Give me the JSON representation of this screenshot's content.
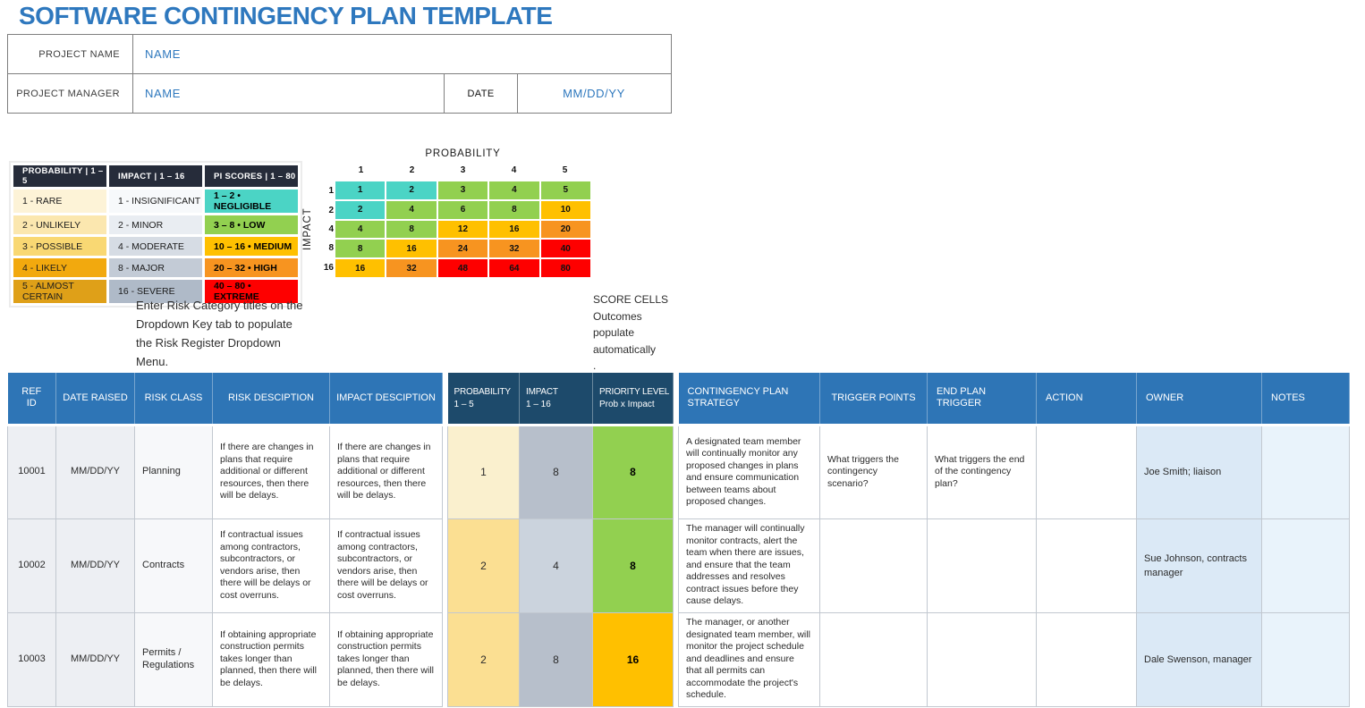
{
  "title": "SOFTWARE CONTINGENCY PLAN TEMPLATE",
  "form": {
    "project_name_label": "PROJECT NAME",
    "project_name_value": "NAME",
    "project_manager_label": "PROJECT MANAGER",
    "project_manager_value": "NAME",
    "date_label": "DATE",
    "date_value": "MM/DD/YY"
  },
  "instructions": {
    "dropdown_note": "Enter Risk Category titles on the\nDropdown Key tab to populate\nthe Risk Register Dropdown\nMenu.",
    "score_cells_note": "SCORE CELLS\nOutcomes\npopulate\nautomatically\n."
  },
  "legend": {
    "headers": [
      "PROBABILITY | 1 – 5",
      "IMPACT | 1 – 16",
      "PI SCORES | 1 – 80"
    ],
    "rows": [
      [
        {
          "label": "1 - RARE",
          "bg": "#FDF3D7"
        },
        {
          "label": "1 - INSIGNIFICANT",
          "bg": "#F7F9FB"
        },
        {
          "label": "1 – 2 • NEGLIGIBLE",
          "bg": "#4BD4C5",
          "bold": true
        }
      ],
      [
        {
          "label": "2 - UNLIKELY",
          "bg": "#FBE7AF"
        },
        {
          "label": "2 - MINOR",
          "bg": "#E9EDF2"
        },
        {
          "label": "3 – 8 • LOW",
          "bg": "#92D050",
          "bold": true
        }
      ],
      [
        {
          "label": "3 - POSSIBLE",
          "bg": "#F9D873"
        },
        {
          "label": "4 - MODERATE",
          "bg": "#D6DCE4"
        },
        {
          "label": "10 – 16 • MEDIUM",
          "bg": "#FFC000",
          "bold": true
        }
      ],
      [
        {
          "label": "4 - LIKELY",
          "bg": "#F2A90E"
        },
        {
          "label": "8 - MAJOR",
          "bg": "#C3CBD6"
        },
        {
          "label": "20 – 32 • HIGH",
          "bg": "#F79420",
          "bold": true
        }
      ],
      [
        {
          "label": "5 - ALMOST CERTAIN",
          "bg": "#DFA018"
        },
        {
          "label": "16 - SEVERE",
          "bg": "#AFBAC8"
        },
        {
          "label": "40 – 80 • EXTREME",
          "bg": "#FE0000",
          "bold": true
        }
      ]
    ]
  },
  "matrix": {
    "title": "PROBABILITY",
    "side_label": "IMPACT",
    "col_labels": [
      "1",
      "2",
      "3",
      "4",
      "5"
    ],
    "row_labels": [
      "1",
      "2",
      "4",
      "8",
      "16"
    ],
    "palette": {
      "teal": "#4BD4C5",
      "green": "#92D050",
      "gold": "#FFC000",
      "orange": "#F79420",
      "red": "#FE0000"
    },
    "cells": [
      [
        {
          "v": "1",
          "c": "teal"
        },
        {
          "v": "2",
          "c": "teal"
        },
        {
          "v": "3",
          "c": "green"
        },
        {
          "v": "4",
          "c": "green"
        },
        {
          "v": "5",
          "c": "green"
        }
      ],
      [
        {
          "v": "2",
          "c": "teal"
        },
        {
          "v": "4",
          "c": "green"
        },
        {
          "v": "6",
          "c": "green"
        },
        {
          "v": "8",
          "c": "green"
        },
        {
          "v": "10",
          "c": "gold"
        }
      ],
      [
        {
          "v": "4",
          "c": "green"
        },
        {
          "v": "8",
          "c": "green"
        },
        {
          "v": "12",
          "c": "gold"
        },
        {
          "v": "16",
          "c": "gold"
        },
        {
          "v": "20",
          "c": "orange"
        }
      ],
      [
        {
          "v": "8",
          "c": "green"
        },
        {
          "v": "16",
          "c": "gold"
        },
        {
          "v": "24",
          "c": "orange"
        },
        {
          "v": "32",
          "c": "orange"
        },
        {
          "v": "40",
          "c": "red"
        }
      ],
      [
        {
          "v": "16",
          "c": "gold"
        },
        {
          "v": "32",
          "c": "orange"
        },
        {
          "v": "48",
          "c": "red"
        },
        {
          "v": "64",
          "c": "red"
        },
        {
          "v": "80",
          "c": "red"
        }
      ]
    ]
  },
  "risk_table": {
    "columns": [
      {
        "key": "ref_id",
        "label": "REF ID",
        "theme": "light"
      },
      {
        "key": "date_raised",
        "label": "DATE RAISED",
        "theme": "light"
      },
      {
        "key": "risk_class",
        "label": "RISK CLASS",
        "theme": "light"
      },
      {
        "key": "risk_desc",
        "label": "RISK DESCIPTION",
        "theme": "light"
      },
      {
        "key": "impact_desc",
        "label": "IMPACT DESCIPTION",
        "theme": "light",
        "sep_after": true
      },
      {
        "key": "probability",
        "label": "PROBABILITY",
        "sub": "1 – 5",
        "theme": "dark"
      },
      {
        "key": "impact",
        "label": "IMPACT",
        "sub": "1 – 16",
        "theme": "dark"
      },
      {
        "key": "priority",
        "label": "PRIORITY LEVEL",
        "sub": "Prob x Impact",
        "theme": "dark",
        "sep_after": true
      },
      {
        "key": "strategy",
        "label": "CONTINGENCY PLAN STRATEGY",
        "theme": "light"
      },
      {
        "key": "trigger_points",
        "label": "TRIGGER POINTS",
        "theme": "light"
      },
      {
        "key": "end_plan_trigger",
        "label": "END PLAN TRIGGER",
        "theme": "light"
      },
      {
        "key": "action",
        "label": "ACTION",
        "theme": "light"
      },
      {
        "key": "owner",
        "label": "OWNER",
        "theme": "light"
      },
      {
        "key": "notes",
        "label": "NOTES",
        "theme": "light"
      }
    ],
    "rows": [
      {
        "ref_id": "10001",
        "date_raised": "MM/DD/YY",
        "risk_class": "Planning",
        "risk_desc": "If there are changes in  plans that require additional or different resources, then there will be delays.",
        "impact_desc": "If there are changes in  plans that require additional or different resources, then there will be delays.",
        "probability": {
          "value": "1",
          "bg": "#FAF0CE"
        },
        "impact": {
          "value": "8",
          "bg": "#B7BFCB"
        },
        "priority": {
          "value": "8",
          "bg": "#92D050"
        },
        "strategy": "A designated team member will continually monitor any proposed changes in plans and ensure communication between teams about proposed changes.",
        "trigger_points": "What triggers the contingency scenario?",
        "end_plan_trigger": "What triggers the end of the contingency plan?",
        "action": "",
        "owner": "Joe Smith;  liaison",
        "notes": ""
      },
      {
        "ref_id": "10002",
        "date_raised": "MM/DD/YY",
        "risk_class": "Contracts",
        "risk_desc": "If contractual issues among contractors, subcontractors, or vendors arise, then there will be delays or cost overruns.",
        "impact_desc": "If contractual issues among contractors, subcontractors, or vendors arise, then there will be delays or cost overruns.",
        "probability": {
          "value": "2",
          "bg": "#FBDF92"
        },
        "impact": {
          "value": "4",
          "bg": "#CBD3DD"
        },
        "priority": {
          "value": "8",
          "bg": "#92D050"
        },
        "strategy": "The manager will continually monitor contracts, alert the team when there are issues, and ensure that the team addresses and resolves contract issues before they cause delays.",
        "trigger_points": "",
        "end_plan_trigger": "",
        "action": "",
        "owner": "Sue Johnson, contracts manager",
        "notes": ""
      },
      {
        "ref_id": "10003",
        "date_raised": "MM/DD/YY",
        "risk_class": "Permits / Regulations",
        "risk_desc": "If obtaining appropriate construction permits takes longer than planned, then there will be delays.",
        "impact_desc": "If obtaining appropriate construction permits takes longer than planned, then there will be delays.",
        "probability": {
          "value": "2",
          "bg": "#FBDF92"
        },
        "impact": {
          "value": "8",
          "bg": "#B7BFCB"
        },
        "priority": {
          "value": "16",
          "bg": "#FFC000"
        },
        "strategy": "The manager, or another designated team member, will monitor the project schedule and deadlines and ensure that all permits can accommodate the project's  schedule.",
        "trigger_points": "",
        "end_plan_trigger": "",
        "action": "",
        "owner": "Dale Swenson, manager",
        "notes": ""
      }
    ]
  },
  "colors": {
    "accent_blue": "#2E78BE",
    "table_header_blue": "#2E75B6",
    "table_header_navy": "#1D4A6B",
    "legend_header_navy": "#262C3A",
    "risk_teal": "#4BD4C5",
    "risk_green": "#92D050",
    "risk_gold": "#FFC000",
    "risk_orange": "#F79420",
    "risk_red": "#FE0000"
  }
}
